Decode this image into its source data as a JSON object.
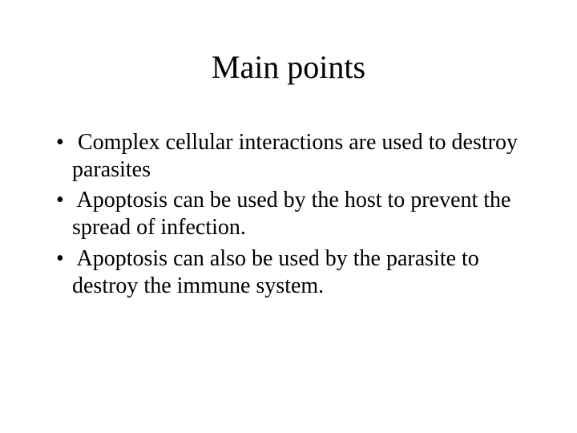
{
  "slide": {
    "title": "Main points",
    "bullets": [
      "Complex cellular interactions are used to destroy parasites",
      "Apoptosis can be used by the host to prevent the spread of infection.",
      "Apoptosis can also be used by the parasite to destroy the immune system."
    ],
    "title_fontsize": 40,
    "body_fontsize": 28,
    "font_family": "Times New Roman",
    "background_color": "#ffffff",
    "text_color": "#000000"
  }
}
